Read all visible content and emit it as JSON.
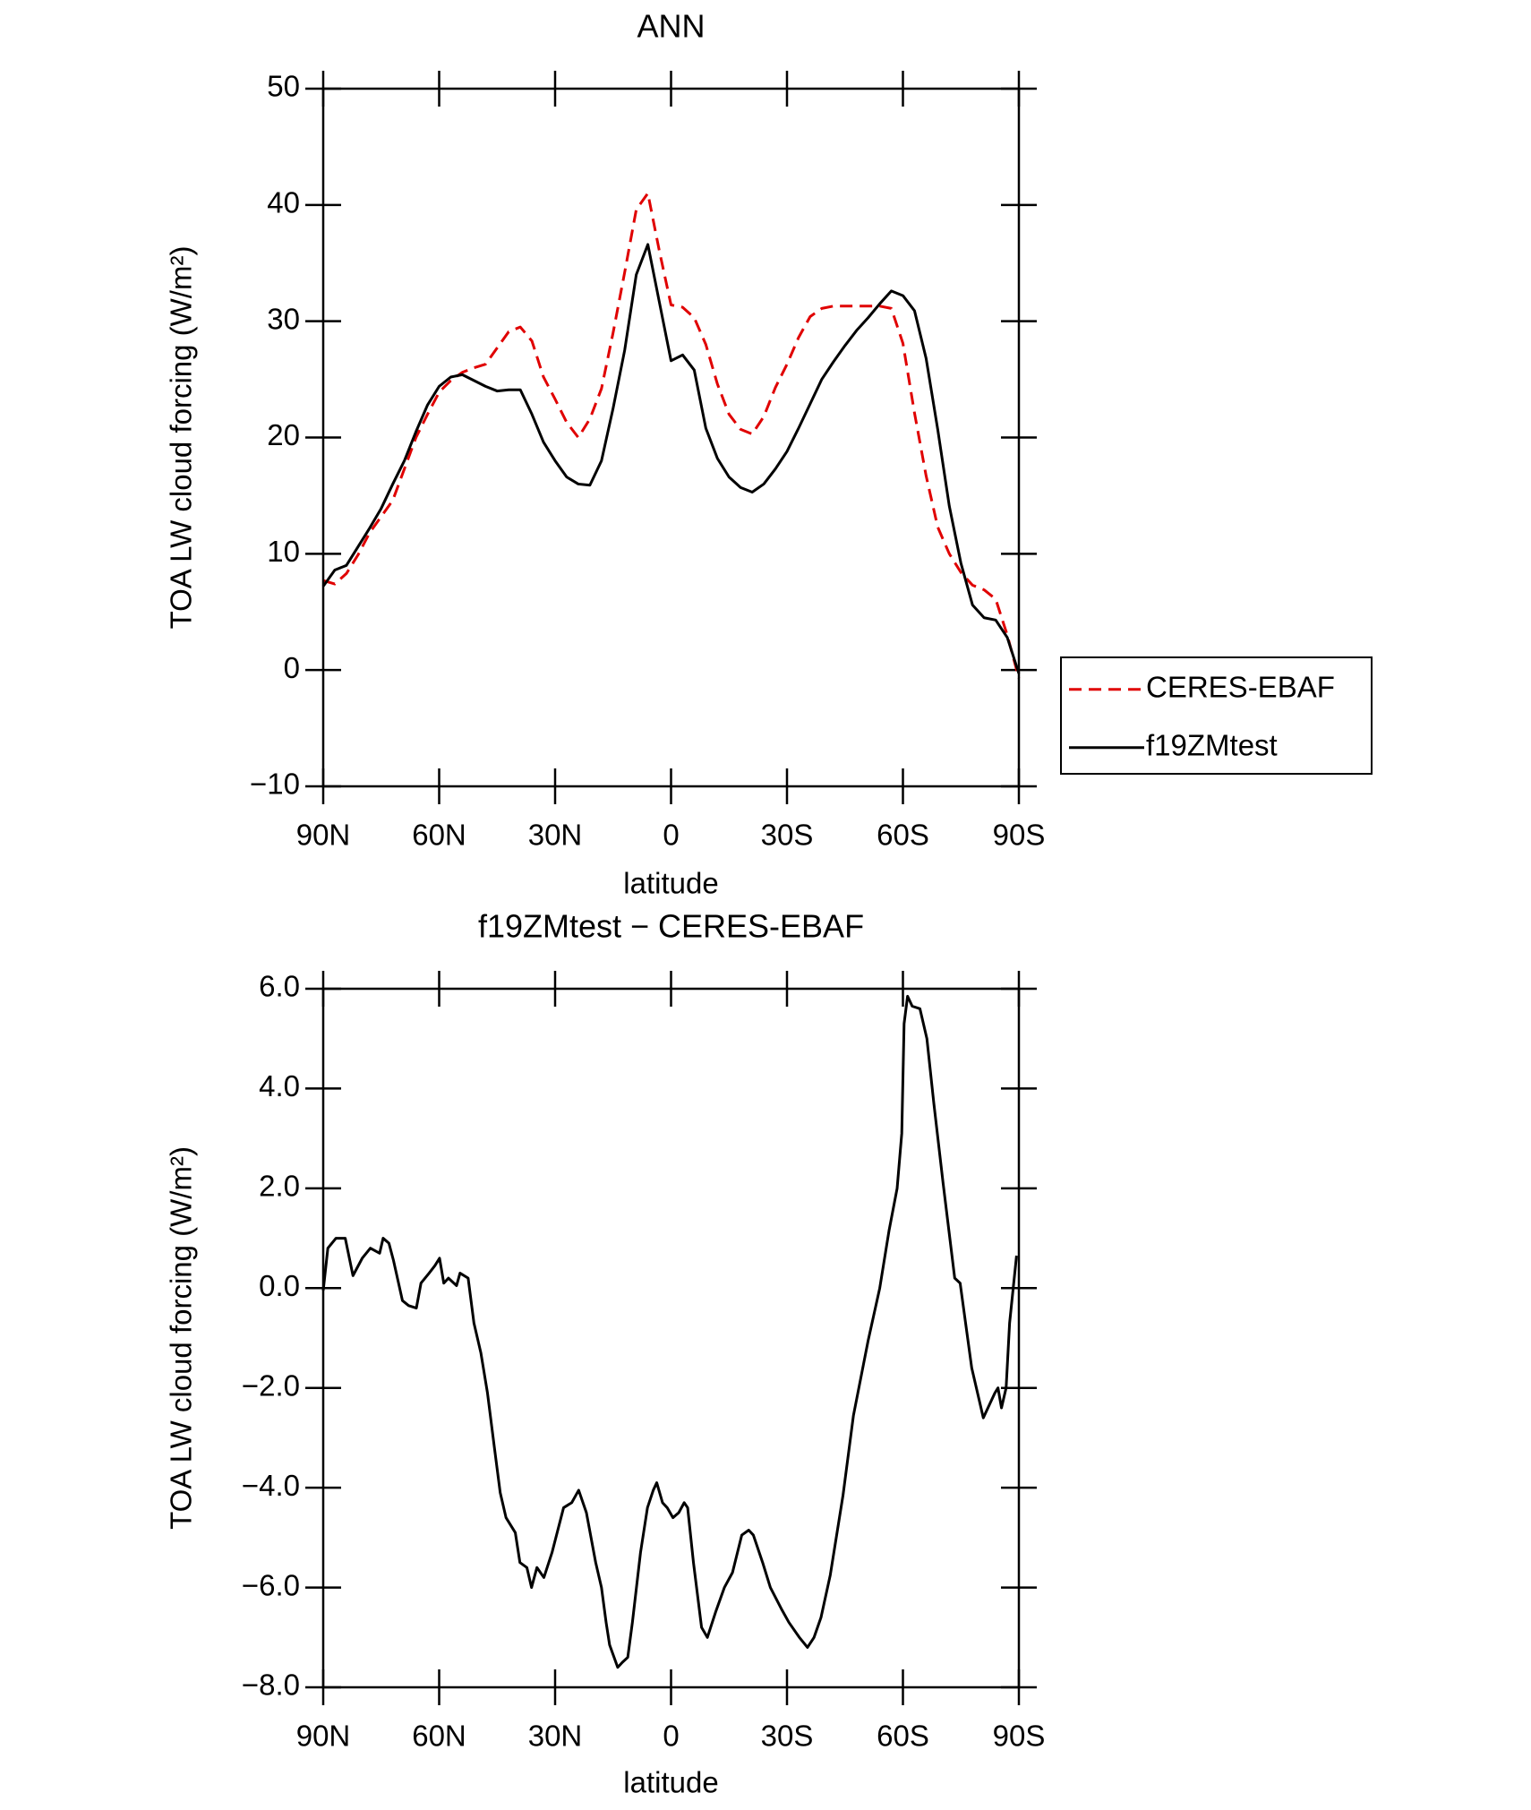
{
  "chart_data": [
    {
      "type": "line",
      "title": "ANN",
      "xlabel": "latitude",
      "ylabel": "TOA LW cloud forcing (W/m²)",
      "x": [
        90,
        87,
        84,
        81,
        78,
        75,
        72,
        69,
        66,
        63,
        60,
        57,
        54,
        51,
        48,
        45,
        42,
        39,
        36,
        33,
        30,
        27,
        24,
        21,
        18,
        15,
        12,
        9,
        6,
        3,
        0,
        -3,
        -6,
        -9,
        -12,
        -15,
        -18,
        -21,
        -24,
        -27,
        -30,
        -33,
        -36,
        -39,
        -42,
        -45,
        -48,
        -51,
        -54,
        -57,
        -60,
        -63,
        -66,
        -69,
        -72,
        -75,
        -78,
        -81,
        -84,
        -87,
        -90
      ],
      "series": [
        {
          "name": "CERES-EBAF",
          "color": "#e00000",
          "linestyle": "dashed",
          "values": [
            7.7,
            7.4,
            8.3,
            9.9,
            11.8,
            13.2,
            14.6,
            17.3,
            20.0,
            22.0,
            23.9,
            24.9,
            25.6,
            26.0,
            26.3,
            27.7,
            29.1,
            29.5,
            28.3,
            25.2,
            23.3,
            21.3,
            20.0,
            21.6,
            24.2,
            29.0,
            34.2,
            39.6,
            41.0,
            36.0,
            31.4,
            31.2,
            30.3,
            28.0,
            24.6,
            22.0,
            20.7,
            20.3,
            21.8,
            24.3,
            26.3,
            28.6,
            30.4,
            31.1,
            31.3,
            31.3,
            31.3,
            31.3,
            31.3,
            31.1,
            28.1,
            22.1,
            16.7,
            12.3,
            10.0,
            8.4,
            7.3,
            6.9,
            6.1,
            3.0,
            -0.7
          ]
        },
        {
          "name": "f19ZMtest",
          "color": "#000000",
          "linestyle": "solid",
          "values": [
            7.2,
            8.6,
            9.0,
            10.6,
            12.2,
            13.9,
            16.0,
            18.0,
            20.5,
            22.8,
            24.4,
            25.2,
            25.4,
            24.9,
            24.4,
            24.0,
            24.1,
            24.1,
            22.0,
            19.6,
            18.0,
            16.6,
            16.0,
            15.9,
            18.0,
            22.5,
            27.5,
            34.0,
            36.6,
            31.6,
            26.6,
            27.1,
            25.8,
            20.8,
            18.2,
            16.6,
            15.7,
            15.3,
            16.0,
            17.3,
            18.8,
            20.8,
            22.9,
            25.0,
            26.5,
            27.9,
            29.2,
            30.3,
            31.5,
            32.6,
            32.2,
            30.9,
            26.8,
            20.7,
            14.1,
            9.2,
            5.6,
            4.5,
            4.3,
            2.8,
            -0.3
          ]
        }
      ],
      "xlim": [
        90,
        -90
      ],
      "xticks": [
        {
          "value": 90,
          "label": "90N"
        },
        {
          "value": 60,
          "label": "60N"
        },
        {
          "value": 30,
          "label": "30N"
        },
        0,
        {
          "value": -30,
          "label": "30S"
        },
        {
          "value": -60,
          "label": "60S"
        },
        {
          "value": -90,
          "label": "90S"
        }
      ],
      "ylim": [
        -10,
        50
      ],
      "yticks": [
        {
          "value": -10,
          "label": "−10"
        },
        0,
        10,
        20,
        30,
        40,
        50
      ],
      "legend": "right"
    },
    {
      "type": "line",
      "title": "f19ZMtest − CERES-EBAF",
      "xlabel": "latitude",
      "ylabel": "TOA LW cloud forcing (W/m²)",
      "x": [
        90,
        88.8,
        86.7,
        84.3,
        82.3,
        79.9,
        77.8,
        75.4,
        74.5,
        73,
        71.8,
        69.5,
        67.9,
        65.9,
        64.7,
        62.6,
        61.1,
        59.9,
        58.8,
        57.6,
        55.5,
        54.6,
        52.5,
        51,
        49.2,
        47.5,
        45.7,
        44.2,
        42.7,
        40.3,
        39.1,
        37.3,
        36.1,
        34.7,
        32.9,
        30.8,
        27.8,
        25.7,
        23.9,
        21.9,
        19.5,
        18,
        16.8,
        15.9,
        13.8,
        12.6,
        11.2,
        10,
        7.9,
        6.1,
        4.6,
        3.7,
        2.2,
        1,
        -0.5,
        -2,
        -3.4,
        -4.3,
        -5.8,
        -7.9,
        -9.4,
        -11.5,
        -13.8,
        -15.9,
        -18.3,
        -20.1,
        -21.3,
        -23.7,
        -25.7,
        -28.7,
        -30.5,
        -33.2,
        -35.3,
        -37,
        -38.8,
        -41.2,
        -44.5,
        -47.2,
        -51,
        -54,
        -56.4,
        -58.5,
        -59.7,
        -60.3,
        -61.2,
        -62.4,
        -64.4,
        -66.2,
        -68,
        -70.4,
        -73.4,
        -74.8,
        -77.8,
        -80.8,
        -83.8,
        -84.6,
        -85.5,
        -86.7,
        -87.6,
        -89.4
      ],
      "series": [
        {
          "name": "f19ZMtest − CERES-EBAF",
          "color": "#000000",
          "linestyle": "solid",
          "values": [
            -0.05,
            0.8,
            1.0,
            1.0,
            0.25,
            0.6,
            0.8,
            0.7,
            1.0,
            0.9,
            0.55,
            -0.25,
            -0.35,
            -0.4,
            0.1,
            0.3,
            0.45,
            0.6,
            0.1,
            0.2,
            0.05,
            0.3,
            0.2,
            -0.7,
            -1.3,
            -2.1,
            -3.2,
            -4.1,
            -4.6,
            -4.9,
            -5.5,
            -5.6,
            -6.0,
            -5.6,
            -5.8,
            -5.3,
            -4.4,
            -4.3,
            -4.05,
            -4.5,
            -5.5,
            -6.0,
            -6.7,
            -7.15,
            -7.6,
            -7.5,
            -7.4,
            -6.7,
            -5.3,
            -4.4,
            -4.05,
            -3.9,
            -4.3,
            -4.4,
            -4.6,
            -4.5,
            -4.3,
            -4.4,
            -5.5,
            -6.8,
            -7.0,
            -6.5,
            -6.0,
            -5.7,
            -4.95,
            -4.85,
            -4.95,
            -5.5,
            -6.0,
            -6.45,
            -6.7,
            -7.0,
            -7.2,
            -7.0,
            -6.6,
            -5.75,
            -4.15,
            -2.55,
            -1.05,
            0.0,
            1.15,
            2.0,
            3.1,
            5.3,
            5.85,
            5.65,
            5.6,
            5.0,
            3.7,
            2.1,
            0.2,
            0.1,
            -1.6,
            -2.6,
            -2.1,
            -2.0,
            -2.4,
            -2.0,
            -0.7,
            0.65
          ]
        }
      ],
      "xlim": [
        90,
        -90
      ],
      "xticks": [
        {
          "value": 90,
          "label": "90N"
        },
        {
          "value": 60,
          "label": "60N"
        },
        {
          "value": 30,
          "label": "30N"
        },
        0,
        {
          "value": -30,
          "label": "30S"
        },
        {
          "value": -60,
          "label": "60S"
        },
        {
          "value": -90,
          "label": "90S"
        }
      ],
      "ylim": [
        -8,
        6
      ],
      "yticks": [
        {
          "value": -8,
          "label": "−8.0"
        },
        {
          "value": -6,
          "label": "−6.0"
        },
        {
          "value": -4,
          "label": "−4.0"
        },
        {
          "value": -2,
          "label": "−2.0"
        },
        {
          "value": 0,
          "label": "0.0"
        },
        {
          "value": 2,
          "label": "2.0"
        },
        {
          "value": 4,
          "label": "4.0"
        },
        {
          "value": 6,
          "label": "6.0"
        }
      ]
    }
  ]
}
